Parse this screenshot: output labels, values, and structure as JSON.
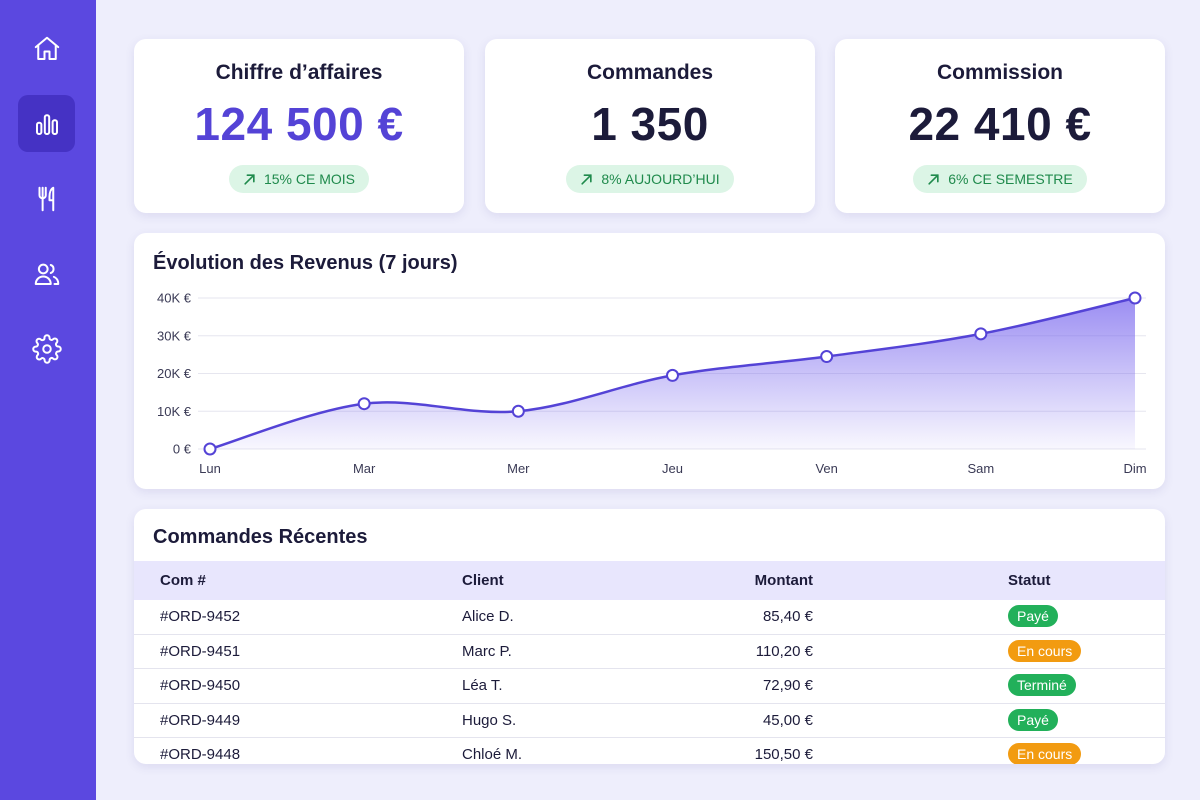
{
  "sidebar": {
    "items": [
      {
        "icon": "home-icon",
        "active": false
      },
      {
        "icon": "bar-chart-icon",
        "active": true
      },
      {
        "icon": "fork-knife-icon",
        "active": false
      },
      {
        "icon": "users-icon",
        "active": false
      },
      {
        "icon": "gear-icon",
        "active": false
      }
    ]
  },
  "stats": [
    {
      "title": "Chiffre d’affaires",
      "value": "124 500 €",
      "badge": "15% CE MOIS"
    },
    {
      "title": "Commandes",
      "value": "1 350",
      "badge": "8% AUJOURD’HUI"
    },
    {
      "title": "Commission",
      "value": "22 410 €",
      "badge": "6% CE SEMESTRE"
    }
  ],
  "revenue": {
    "title": "Évolution des Revenus (7 jours)"
  },
  "chart_data": {
    "type": "area",
    "title": "Évolution des Revenus (7 jours)",
    "categories": [
      "Lun",
      "Mar",
      "Mer",
      "Jeu",
      "Ven",
      "Sam",
      "Dim"
    ],
    "values": [
      0,
      12000,
      10000,
      19500,
      24500,
      30500,
      40000
    ],
    "ylim": [
      0,
      40000
    ],
    "y_ticks": [
      "0 €",
      "10K €",
      "20K €",
      "30K €",
      "40K €"
    ],
    "grid": true
  },
  "orders": {
    "title": "Commandes Récentes",
    "columns": [
      "Com #",
      "Client",
      "Montant",
      "Statut"
    ],
    "rows": [
      {
        "id": "#ORD-9452",
        "client": "Alice D.",
        "amount": "85,40 €",
        "status": "Payé",
        "status_color": "#22b05a"
      },
      {
        "id": "#ORD-9451",
        "client": "Marc P.",
        "amount": "110,20 €",
        "status": "En cours",
        "status_color": "#f29b11"
      },
      {
        "id": "#ORD-9450",
        "client": "Léa T.",
        "amount": "72,90 €",
        "status": "Terminé",
        "status_color": "#22b05a"
      },
      {
        "id": "#ORD-9449",
        "client": "Hugo S.",
        "amount": "45,00 €",
        "status": "Payé",
        "status_color": "#22b05a"
      },
      {
        "id": "#ORD-9448",
        "client": "Chloé M.",
        "amount": "150,50 €",
        "status": "En cours",
        "status_color": "#f29b11"
      }
    ]
  },
  "colors": {
    "sidebar": "#5b48e0",
    "accent": "#5443d6",
    "badge_bg": "#dcf5e6",
    "badge_text": "#1f8a4c",
    "status_green": "#22b05a",
    "status_orange": "#f29b11"
  }
}
